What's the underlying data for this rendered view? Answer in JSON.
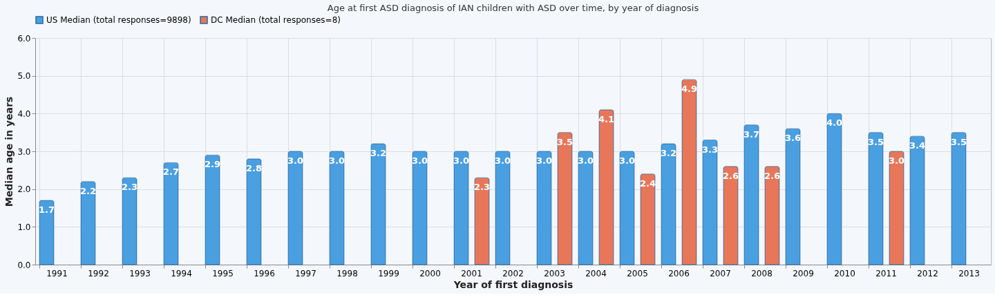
{
  "chart_data": {
    "type": "bar",
    "title": "Age at first ASD diagnosis of IAN children with ASD over time, by year of diagnosis",
    "xlabel": "Year of first diagnosis",
    "ylabel": "Median age in years",
    "categories": [
      "1991",
      "1992",
      "1993",
      "1994",
      "1995",
      "1996",
      "1997",
      "1998",
      "1999",
      "2000",
      "2001",
      "2002",
      "2003",
      "2004",
      "2005",
      "2006",
      "2007",
      "2008",
      "2009",
      "2010",
      "2011",
      "2012",
      "2013"
    ],
    "series": [
      {
        "name": "US Median (total responses=9898)",
        "color": "#4a9fe0",
        "values": [
          1.7,
          2.2,
          2.3,
          2.7,
          2.9,
          2.8,
          3.0,
          3.0,
          3.2,
          3.0,
          3.0,
          3.0,
          3.0,
          3.0,
          3.0,
          3.2,
          3.3,
          3.7,
          3.6,
          4.0,
          3.5,
          3.4,
          3.5
        ],
        "value_labels": [
          "1.7",
          "2.2",
          "2.3",
          "2.7",
          "2.9",
          "2.8",
          "3.0",
          "3.0",
          "3.2",
          "3.0",
          "3.0",
          "3.0",
          "3.0",
          "3.0",
          "3.0",
          "3.2",
          "3.3",
          "3.7",
          "3.6",
          "4.0",
          "3.5",
          "3.4",
          "3.5"
        ]
      },
      {
        "name": "DC Median (total responses=8)",
        "color": "#e8775a",
        "values": [
          null,
          null,
          null,
          null,
          null,
          null,
          null,
          null,
          null,
          null,
          2.3,
          null,
          3.5,
          4.1,
          2.4,
          4.9,
          2.6,
          2.6,
          null,
          null,
          3.0,
          null,
          null
        ],
        "value_labels": [
          null,
          null,
          null,
          null,
          null,
          null,
          null,
          null,
          null,
          null,
          "2.3",
          null,
          "3.5",
          "4.1",
          "2.4",
          "4.9",
          "2.6",
          "2.6",
          null,
          null,
          "3.0",
          null,
          null
        ]
      }
    ],
    "ylim": [
      0,
      6
    ],
    "yticks": [
      {
        "value": 0,
        "label": "0.0"
      },
      {
        "value": 1,
        "label": "1.0"
      },
      {
        "value": 2,
        "label": "2.0"
      },
      {
        "value": 3,
        "label": "3.0"
      },
      {
        "value": 4,
        "label": "4.0"
      },
      {
        "value": 5,
        "label": "5.0"
      },
      {
        "value": 6,
        "label": "6.0"
      }
    ],
    "grid": true,
    "legend": "top"
  }
}
